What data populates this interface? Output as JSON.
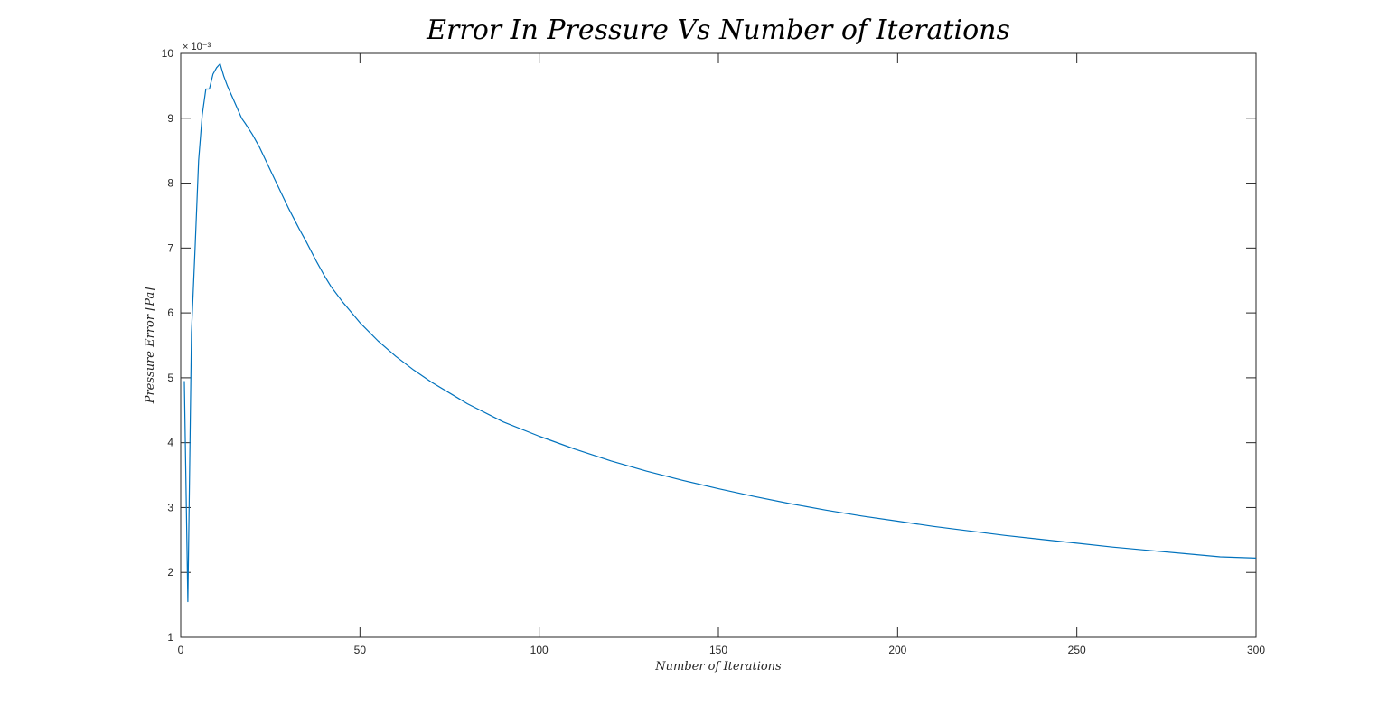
{
  "chart_data": {
    "type": "line",
    "title": "Error In Pressure Vs Number of Iterations",
    "xlabel": "Number of Iterations",
    "ylabel": "Pressure Error [Pa]",
    "y_exponent_label": "× 10⁻³",
    "xlim": [
      0,
      300
    ],
    "ylim": [
      1,
      10
    ],
    "xticks": [
      0,
      50,
      100,
      150,
      200,
      250,
      300
    ],
    "yticks": [
      1,
      2,
      3,
      4,
      5,
      6,
      7,
      8,
      9,
      10
    ],
    "grid": false,
    "line_color": "#0072bd",
    "series": [
      {
        "x": [
          1,
          2,
          3,
          4,
          5,
          6,
          7,
          8,
          9,
          10,
          11,
          12,
          13,
          15,
          17,
          18,
          20,
          22,
          25,
          28,
          30,
          33,
          35,
          38,
          40,
          42,
          45,
          50,
          55,
          60,
          65,
          70,
          80,
          90,
          100,
          110,
          120,
          130,
          140,
          150,
          160,
          170,
          180,
          190,
          200,
          210,
          220,
          230,
          240,
          250,
          260,
          270,
          280,
          290,
          300
        ],
        "values": [
          4.95,
          1.55,
          5.7,
          7.0,
          8.35,
          9.05,
          9.45,
          9.45,
          9.68,
          9.78,
          9.84,
          9.65,
          9.5,
          9.25,
          9.0,
          8.92,
          8.75,
          8.55,
          8.2,
          7.85,
          7.62,
          7.3,
          7.1,
          6.78,
          6.58,
          6.4,
          6.18,
          5.85,
          5.57,
          5.33,
          5.12,
          4.93,
          4.6,
          4.32,
          4.1,
          3.9,
          3.72,
          3.56,
          3.42,
          3.29,
          3.17,
          3.06,
          2.96,
          2.87,
          2.79,
          2.71,
          2.64,
          2.57,
          2.51,
          2.45,
          2.39,
          2.34,
          2.29,
          2.24,
          2.22
        ]
      }
    ]
  }
}
